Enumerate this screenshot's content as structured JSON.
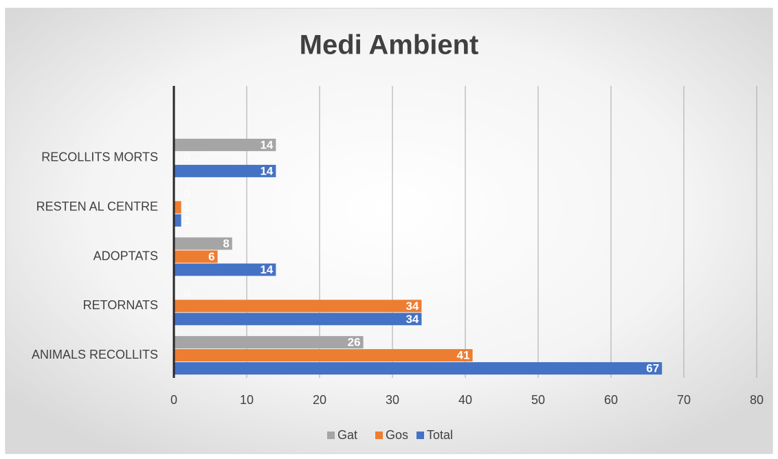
{
  "chart_data": {
    "type": "hbar",
    "title": "Medi Ambient",
    "categories": [
      "ANIMALS RECOLLITS",
      "RETORNATS",
      "ADOPTATS",
      "RESTEN AL CENTRE",
      "RECOLLITS MORTS"
    ],
    "series": [
      {
        "name": "Gat",
        "color": "#a5a5a5",
        "values": [
          26,
          0,
          8,
          0,
          14
        ]
      },
      {
        "name": "Gos",
        "color": "#ed7d31",
        "values": [
          41,
          34,
          6,
          1,
          0
        ]
      },
      {
        "name": "Total",
        "color": "#4472c4",
        "values": [
          67,
          34,
          14,
          1,
          14
        ]
      }
    ],
    "xlim": [
      0,
      80
    ],
    "xticks": [
      0,
      10,
      20,
      30,
      40,
      50,
      60,
      70,
      80
    ],
    "grid": true,
    "legend": "bottom"
  }
}
